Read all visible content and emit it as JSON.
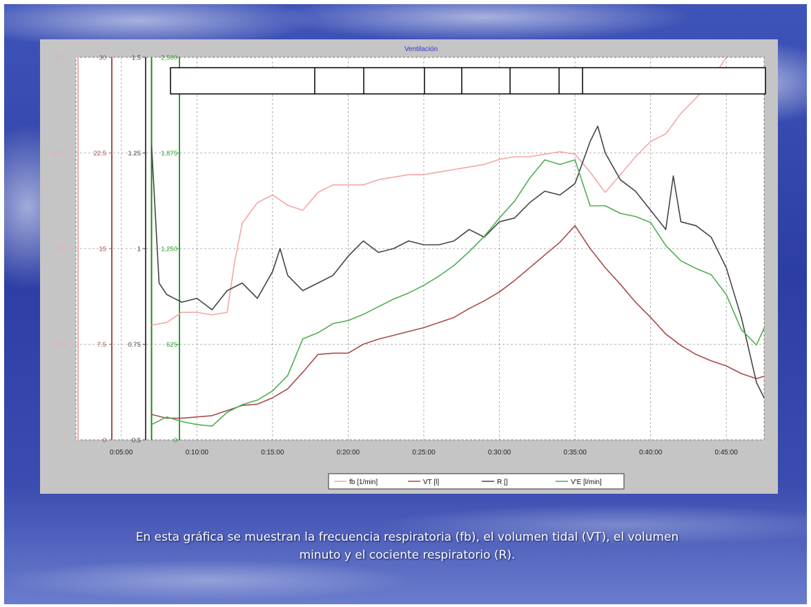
{
  "slide": {
    "caption_line1": "En esta gráfica se muestran la frecuencia respiratoria (fb), el volumen tidal (VT), el volumen",
    "caption_line2": "minuto y el cociente respiratorio (R)."
  },
  "colors": {
    "fb": "#f4a6a6",
    "VT": "#a84b4b",
    "R": "#444444",
    "VE": "#4caf50"
  },
  "chart_data": {
    "type": "line",
    "title": "Ventilación",
    "xlabel": "",
    "x_ticks": [
      "0:05:00",
      "0:10:00",
      "0:15:00",
      "0:20:00",
      "0:25:00",
      "0:30:00",
      "0:35:00",
      "0:40:00",
      "0:45:00"
    ],
    "xlim": [
      "0:02:00",
      "0:47:30"
    ],
    "grid": true,
    "legend_position": "bottom",
    "axes": [
      {
        "id": "fb",
        "color": "#f4a6a6",
        "ticks": [
          "0",
          "37.5",
          "75",
          "112.5",
          "150"
        ],
        "ylim": [
          0,
          150
        ]
      },
      {
        "id": "VT",
        "color": "#a84b4b",
        "ticks": [
          "0",
          "7.5",
          "15",
          "22.5",
          "30"
        ],
        "ylim": [
          0,
          30
        ]
      },
      {
        "id": "R",
        "color": "#444444",
        "ticks": [
          "0.5",
          "0.75",
          "1",
          "1.25",
          "1.5"
        ],
        "ylim": [
          0.5,
          1.5
        ]
      },
      {
        "id": "VE",
        "color": "#2e9e2e",
        "ticks": [
          "0",
          "625",
          "1,250",
          "1,875",
          "2,500"
        ],
        "ylim": [
          0,
          2500
        ]
      }
    ],
    "series": [
      {
        "name": "fb [1/min]",
        "axis": "fb",
        "color": "#f4a6a6",
        "x": [
          "0:07:00",
          "0:08:00",
          "0:09:00",
          "0:10:00",
          "0:11:00",
          "0:12:00",
          "0:12:30",
          "0:13:00",
          "0:14:00",
          "0:15:00",
          "0:16:00",
          "0:17:00",
          "0:18:00",
          "0:19:00",
          "0:20:00",
          "0:21:00",
          "0:22:00",
          "0:23:00",
          "0:24:00",
          "0:25:00",
          "0:26:00",
          "0:27:00",
          "0:28:00",
          "0:29:00",
          "0:30:00",
          "0:31:00",
          "0:32:00",
          "0:33:00",
          "0:34:00",
          "0:35:00",
          "0:36:00",
          "0:37:00",
          "0:38:00",
          "0:39:00",
          "0:40:00",
          "0:41:00",
          "0:42:00",
          "0:43:00",
          "0:44:00",
          "0:45:00"
        ],
        "y": [
          45,
          46,
          50,
          50,
          49,
          50,
          70,
          85,
          93,
          96,
          92,
          90,
          97,
          100,
          100,
          100,
          102,
          103,
          104,
          104,
          105,
          106,
          107,
          108,
          110,
          111,
          111,
          112,
          113,
          112,
          105,
          97,
          104,
          111,
          117,
          120,
          128,
          134,
          141,
          150
        ]
      },
      {
        "name": "VT [l]",
        "axis": "VT",
        "color": "#a84b4b",
        "x": [
          "0:07:00",
          "0:08:00",
          "0:09:00",
          "0:10:00",
          "0:11:00",
          "0:12:00",
          "0:13:00",
          "0:14:00",
          "0:15:00",
          "0:16:00",
          "0:17:00",
          "0:18:00",
          "0:19:00",
          "0:20:00",
          "0:21:00",
          "0:22:00",
          "0:23:00",
          "0:24:00",
          "0:25:00",
          "0:26:00",
          "0:27:00",
          "0:28:00",
          "0:29:00",
          "0:30:00",
          "0:31:00",
          "0:32:00",
          "0:33:00",
          "0:34:00",
          "0:35:00",
          "0:36:00",
          "0:37:00",
          "0:38:00",
          "0:39:00",
          "0:40:00",
          "0:41:00",
          "0:42:00",
          "0:43:00",
          "0:44:00",
          "0:45:00",
          "0:46:00",
          "0:47:00",
          "0:47:30"
        ],
        "y": [
          2.0,
          1.7,
          1.7,
          1.8,
          1.9,
          2.3,
          2.7,
          2.8,
          3.3,
          4.0,
          5.3,
          6.7,
          6.8,
          6.8,
          7.5,
          7.9,
          8.2,
          8.5,
          8.8,
          9.2,
          9.6,
          10.3,
          10.9,
          11.6,
          12.5,
          13.5,
          14.5,
          15.5,
          16.8,
          15.0,
          13.5,
          12.2,
          10.8,
          9.6,
          8.3,
          7.4,
          6.7,
          6.2,
          5.8,
          5.2,
          4.8,
          5.0
        ]
      },
      {
        "name": "R []",
        "axis": "R",
        "color": "#444444",
        "x": [
          "0:07:00",
          "0:07:30",
          "0:08:00",
          "0:09:00",
          "0:10:00",
          "0:11:00",
          "0:12:00",
          "0:13:00",
          "0:14:00",
          "0:15:00",
          "0:15:30",
          "0:16:00",
          "0:17:00",
          "0:18:00",
          "0:19:00",
          "0:20:00",
          "0:21:00",
          "0:22:00",
          "0:23:00",
          "0:24:00",
          "0:25:00",
          "0:26:00",
          "0:27:00",
          "0:28:00",
          "0:29:00",
          "0:30:00",
          "0:31:00",
          "0:32:00",
          "0:33:00",
          "0:34:00",
          "0:35:00",
          "0:36:00",
          "0:36:30",
          "0:37:00",
          "0:38:00",
          "0:39:00",
          "0:40:00",
          "0:41:00",
          "0:41:30",
          "0:42:00",
          "0:43:00",
          "0:44:00",
          "0:45:00",
          "0:46:00",
          "0:47:00",
          "0:47:30"
        ],
        "y": [
          1.27,
          0.91,
          0.88,
          0.86,
          0.87,
          0.84,
          0.89,
          0.91,
          0.87,
          0.94,
          1.0,
          0.93,
          0.89,
          0.91,
          0.93,
          0.98,
          1.02,
          0.99,
          1.0,
          1.02,
          1.01,
          1.01,
          1.02,
          1.05,
          1.03,
          1.07,
          1.08,
          1.12,
          1.15,
          1.14,
          1.17,
          1.28,
          1.32,
          1.25,
          1.18,
          1.15,
          1.1,
          1.05,
          1.19,
          1.07,
          1.06,
          1.03,
          0.95,
          0.82,
          0.65,
          0.61
        ]
      },
      {
        "name": "V'E [l/min]",
        "axis": "VE",
        "color": "#4caf50",
        "x": [
          "0:07:00",
          "0:08:00",
          "0:09:00",
          "0:10:00",
          "0:11:00",
          "0:12:00",
          "0:13:00",
          "0:14:00",
          "0:15:00",
          "0:16:00",
          "0:17:00",
          "0:18:00",
          "0:19:00",
          "0:20:00",
          "0:21:00",
          "0:22:00",
          "0:23:00",
          "0:24:00",
          "0:25:00",
          "0:26:00",
          "0:27:00",
          "0:28:00",
          "0:29:00",
          "0:30:00",
          "0:31:00",
          "0:32:00",
          "0:33:00",
          "0:34:00",
          "0:35:00",
          "0:36:00",
          "0:37:00",
          "0:38:00",
          "0:39:00",
          "0:40:00",
          "0:41:00",
          "0:42:00",
          "0:43:00",
          "0:44:00",
          "0:45:00",
          "0:46:00",
          "0:47:00",
          "0:47:30"
        ],
        "y": [
          100,
          150,
          120,
          100,
          90,
          180,
          230,
          260,
          320,
          420,
          660,
          700,
          760,
          780,
          820,
          870,
          920,
          960,
          1010,
          1070,
          1140,
          1230,
          1330,
          1450,
          1560,
          1710,
          1830,
          1800,
          1830,
          1530,
          1530,
          1480,
          1460,
          1420,
          1270,
          1170,
          1120,
          1080,
          950,
          720,
          620,
          730
        ]
      }
    ]
  }
}
